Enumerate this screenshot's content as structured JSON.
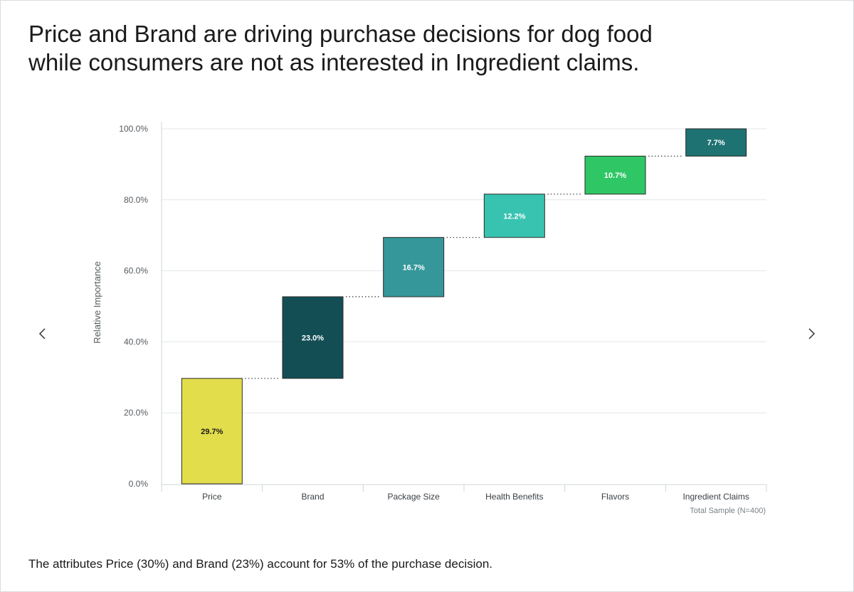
{
  "headline": {
    "line1": "Price and Brand are driving purchase decisions for dog food",
    "line2": "while consumers are not as interested in Ingredient claims."
  },
  "footnote": "The attributes Price (30%) and Brand (23%) account for 53% of the purchase decision.",
  "navigation": {
    "prev_icon": "chevron-left-icon",
    "next_icon": "chevron-right-icon"
  },
  "chart_data": {
    "type": "waterfall",
    "title": "",
    "ylabel": "Relative Importance",
    "xlabel": "",
    "ylim": [
      0,
      100
    ],
    "yticks": [
      0,
      20,
      40,
      60,
      80,
      100
    ],
    "ytick_labels": [
      "0.0%",
      "20.0%",
      "40.0%",
      "60.0%",
      "80.0%",
      "100.0%"
    ],
    "categories": [
      "Price",
      "Brand",
      "Package Size",
      "Health Benefits",
      "Flavors",
      "Ingredient Claims"
    ],
    "values": [
      29.7,
      23.0,
      16.7,
      12.2,
      10.7,
      7.7
    ],
    "value_labels": [
      "29.7%",
      "23.0%",
      "16.7%",
      "12.2%",
      "10.7%",
      "7.7%"
    ],
    "colors": [
      "#e2dd4b",
      "#134e55",
      "#35979a",
      "#38c3b1",
      "#2fc765",
      "#1e7271"
    ],
    "label_colors": [
      "#1a1a1a",
      "#ffffff",
      "#ffffff",
      "#ffffff",
      "#ffffff",
      "#ffffff"
    ],
    "note": "Total Sample (N=400)",
    "grid": true
  }
}
